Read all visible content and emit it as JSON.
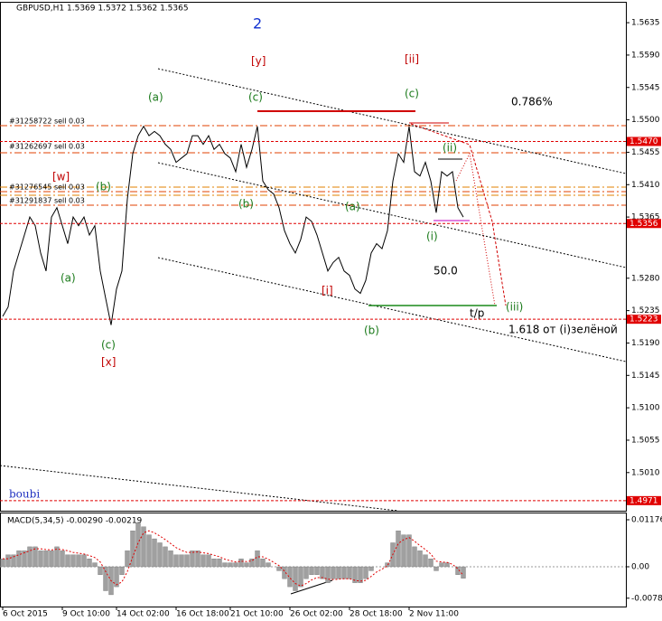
{
  "chart_data": [
    {
      "type": "line",
      "title": "GBPUSD,H1 1.5369 1.5372 1.5362 1.5365",
      "color": "#000000",
      "categories": [
        "6 Oct 2015",
        null,
        null,
        null,
        null,
        null,
        null,
        null,
        null,
        null,
        null,
        "9 Oct 10:00",
        null,
        null,
        null,
        null,
        null,
        null,
        null,
        null,
        null,
        "14 Oct 02:00",
        null,
        null,
        null,
        null,
        null,
        null,
        null,
        null,
        null,
        null,
        "16 Oct 18:00",
        null,
        null,
        null,
        null,
        null,
        null,
        null,
        null,
        null,
        "21 Oct 10:00",
        null,
        null,
        null,
        null,
        null,
        null,
        null,
        null,
        null,
        null,
        "26 Oct 02:00",
        null,
        null,
        null,
        null,
        null,
        null,
        null,
        null,
        null,
        null,
        "28 Oct 18:00",
        null,
        null,
        null,
        null,
        null,
        null,
        null,
        null,
        null,
        null,
        "2 Nov 11:00",
        null,
        null,
        null,
        null,
        null,
        null,
        null,
        null,
        null,
        null
      ],
      "values": [
        1.5227,
        1.524,
        1.529,
        1.5315,
        1.534,
        1.5365,
        1.5353,
        1.5315,
        1.529,
        1.5365,
        1.5378,
        1.5353,
        1.5328,
        1.5365,
        1.5353,
        1.5365,
        1.534,
        1.5353,
        1.529,
        1.5252,
        1.5215,
        1.5265,
        1.529,
        1.539,
        1.5453,
        1.5478,
        1.5491,
        1.5478,
        1.5484,
        1.5478,
        1.5466,
        1.5459,
        1.5441,
        1.5447,
        1.5453,
        1.5478,
        1.5478,
        1.5466,
        1.5478,
        1.5459,
        1.5466,
        1.5453,
        1.5447,
        1.5428,
        1.5466,
        1.5434,
        1.5459,
        1.5491,
        1.5415,
        1.5403,
        1.5397,
        1.5378,
        1.5346,
        1.5328,
        1.5315,
        1.5334,
        1.5365,
        1.5359,
        1.534,
        1.5315,
        1.529,
        1.5302,
        1.5309,
        1.529,
        1.5284,
        1.5265,
        1.5259,
        1.5277,
        1.5315,
        1.5328,
        1.5321,
        1.5346,
        1.5415,
        1.5453,
        1.5441,
        1.5491,
        1.5428,
        1.5422,
        1.5441,
        1.5415,
        1.5371,
        1.5428,
        1.5422,
        1.5428,
        1.5378,
        1.5365
      ],
      "ylim": [
        1.4957,
        1.5664
      ],
      "yticks": [
        {
          "value": 1.5635,
          "label": "1.5635"
        },
        {
          "value": 1.559,
          "label": "1.5590"
        },
        {
          "value": 1.5545,
          "label": "1.5545"
        },
        {
          "value": 1.55,
          "label": "1.5500"
        },
        {
          "value": 1.5455,
          "label": "1.5455"
        },
        {
          "value": 1.541,
          "label": "1.5410"
        },
        {
          "value": 1.5365,
          "label": "1.5365"
        },
        {
          "value": 1.528,
          "label": "1.5280"
        },
        {
          "value": 1.5235,
          "label": "1.5235"
        },
        {
          "value": 1.519,
          "label": "1.5190"
        },
        {
          "value": 1.5145,
          "label": "1.5145"
        },
        {
          "value": 1.51,
          "label": "1.5100"
        },
        {
          "value": 1.5055,
          "label": "1.5055"
        },
        {
          "value": 1.501,
          "label": "1.5010"
        }
      ],
      "levels": [
        {
          "value": 1.547,
          "label": "1.5470"
        },
        {
          "value": 1.5356,
          "label": "1.5356"
        },
        {
          "value": 1.5223,
          "label": "1.5223"
        },
        {
          "value": 1.4971,
          "label": "1.4971"
        }
      ],
      "level_color": "#e00000",
      "annotations": [
        "2",
        "[y]",
        "[ii]",
        "(a)",
        "(c)",
        "(c)",
        "0.786%",
        "#31258722 sell 0.03",
        "#31262697 sell 0.03",
        "[w]",
        "(b)",
        "#31276545 sell 0.03",
        "#31291837 sell 0.03",
        "(ii)",
        "(b)",
        "(a)",
        "(i)",
        "50.0",
        "(a)",
        "[i]",
        "t/p",
        "(iii)",
        "1.618 от (i)зелёной",
        "(b)",
        "(c)",
        "[x]",
        "boubi"
      ]
    },
    {
      "type": "bar",
      "title": "MACD(5,34,5) -0.00290 -0.00219",
      "color": "#a0a0a0",
      "values": [
        0.002,
        0.003,
        0.003,
        0.004,
        0.004,
        0.005,
        0.005,
        0.004,
        0.004,
        0.004,
        0.005,
        0.004,
        0.003,
        0.003,
        0.003,
        0.003,
        0.002,
        0.001,
        -0.002,
        -0.006,
        -0.007,
        -0.005,
        -0.002,
        0.004,
        0.009,
        0.011,
        0.01,
        0.008,
        0.007,
        0.006,
        0.005,
        0.004,
        0.003,
        0.003,
        0.003,
        0.004,
        0.004,
        0.003,
        0.003,
        0.002,
        0.002,
        0.001,
        0.001,
        0.001,
        0.002,
        0.001,
        0.002,
        0.004,
        0.002,
        0.001,
        0.0,
        -0.001,
        -0.003,
        -0.005,
        -0.006,
        -0.005,
        -0.003,
        -0.002,
        -0.002,
        -0.003,
        -0.004,
        -0.003,
        -0.003,
        -0.003,
        -0.003,
        -0.004,
        -0.004,
        -0.003,
        -0.001,
        0.0,
        0.0,
        0.001,
        0.006,
        0.009,
        0.008,
        0.008,
        0.005,
        0.004,
        0.003,
        0.002,
        -0.001,
        0.001,
        0.001,
        0.0,
        -0.002,
        -0.0029
      ],
      "signal": [
        0.002,
        0.002,
        0.0025,
        0.003,
        0.0035,
        0.004,
        0.0045,
        0.0045,
        0.0043,
        0.0042,
        0.0044,
        0.0043,
        0.004,
        0.0036,
        0.0034,
        0.0032,
        0.0028,
        0.0023,
        0.0012,
        -0.0012,
        -0.0035,
        -0.0045,
        -0.0038,
        -0.0012,
        0.0025,
        0.006,
        0.0085,
        0.009,
        0.0085,
        0.0077,
        0.0068,
        0.0058,
        0.0048,
        0.0041,
        0.0036,
        0.0036,
        0.0037,
        0.0035,
        0.0033,
        0.0029,
        0.0025,
        0.0019,
        0.0015,
        0.0012,
        0.0014,
        0.0013,
        0.0015,
        0.0025,
        0.0025,
        0.0019,
        0.0011,
        0.0003,
        -0.0011,
        -0.0028,
        -0.0042,
        -0.0048,
        -0.0042,
        -0.0033,
        -0.0027,
        -0.0027,
        -0.0031,
        -0.0032,
        -0.0031,
        -0.003,
        -0.003,
        -0.0034,
        -0.0036,
        -0.0034,
        -0.0024,
        -0.0013,
        -0.0006,
        0.0002,
        0.0031,
        0.0058,
        0.0068,
        0.0073,
        0.0064,
        0.0053,
        0.0043,
        0.0032,
        0.0014,
        0.0012,
        0.0011,
        0.0006,
        -0.0005,
        -0.00219
      ],
      "signal_color": "#e00000",
      "ylim": [
        -0.00995,
        0.01357
      ],
      "yticks": [
        {
          "value": 0.01176,
          "label": "0.01176"
        },
        {
          "value": 0,
          "label": "0.00"
        },
        {
          "value": -0.00786,
          "label": "-0.00786"
        }
      ]
    }
  ]
}
